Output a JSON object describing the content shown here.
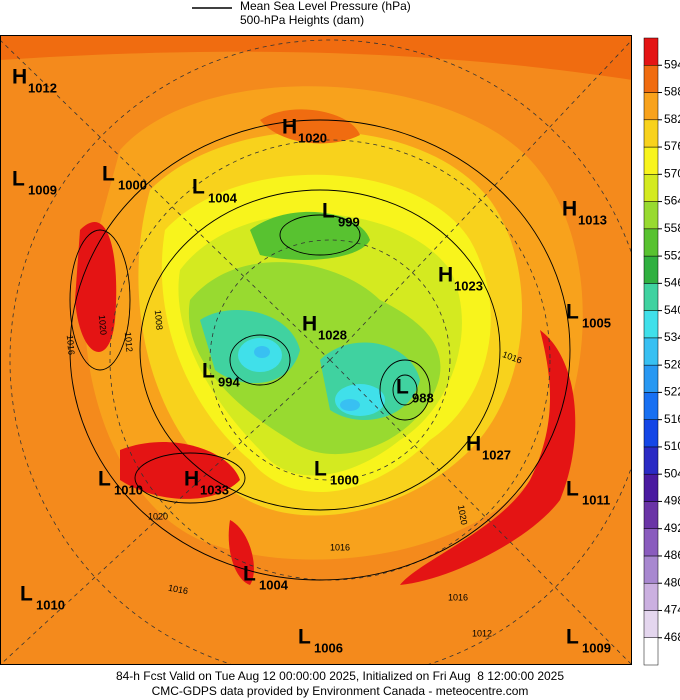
{
  "legend": {
    "lines": [
      "Mean Sea Level Pressure (hPa)",
      "500-hPa Heights (dam)"
    ]
  },
  "colorbar": {
    "levels": [
      468,
      474,
      480,
      486,
      492,
      498,
      504,
      510,
      516,
      522,
      528,
      534,
      540,
      546,
      552,
      558,
      564,
      570,
      576,
      582,
      588,
      594
    ],
    "colors": [
      "#ffffff",
      "#e4d6ee",
      "#cbb0e0",
      "#a888d0",
      "#8a5cbe",
      "#6a34a6",
      "#4a1aa0",
      "#2a2ac4",
      "#1446e6",
      "#1870f2",
      "#2898f2",
      "#38c0f2",
      "#40e0ea",
      "#40d2a0",
      "#30b040",
      "#58c230",
      "#98da30",
      "#d4ea20",
      "#f8f41c",
      "#f8d21c",
      "#f8a21c",
      "#f06c10",
      "#e41414"
    ]
  },
  "centers": [
    {
      "kind": "H",
      "value": 1012
    },
    {
      "kind": "L",
      "value": 1009
    },
    {
      "kind": "L",
      "value": 1000
    },
    {
      "kind": "L",
      "value": 1004
    },
    {
      "kind": "H",
      "value": 1020
    },
    {
      "kind": "L",
      "value": 999
    },
    {
      "kind": "H",
      "value": 1013
    },
    {
      "kind": "H",
      "value": 1023
    },
    {
      "kind": "L",
      "value": 1005
    },
    {
      "kind": "H",
      "value": 1028
    },
    {
      "kind": "L",
      "value": 994
    },
    {
      "kind": "L",
      "value": 988
    },
    {
      "kind": "H",
      "value": 1027
    },
    {
      "kind": "L",
      "value": 1000
    },
    {
      "kind": "L",
      "value": 1010
    },
    {
      "kind": "H",
      "value": 1033
    },
    {
      "kind": "L",
      "value": 1011
    },
    {
      "kind": "L",
      "value": 1004
    },
    {
      "kind": "L",
      "value": 1010
    },
    {
      "kind": "L",
      "value": 1006
    },
    {
      "kind": "L",
      "value": 1009
    }
  ],
  "isobar_labels": [
    1008,
    1012,
    1016,
    1020,
    1016,
    1016,
    1020,
    1016,
    1012,
    1020,
    1016
  ],
  "footer": [
    "84-h Fcst Valid on Tue Aug 12 00:00:00 2025, Initialized on Fri Aug  8 12:00:00 2025",
    "CMC-GDPS data provided by Environment Canada - meteocentre.com"
  ]
}
